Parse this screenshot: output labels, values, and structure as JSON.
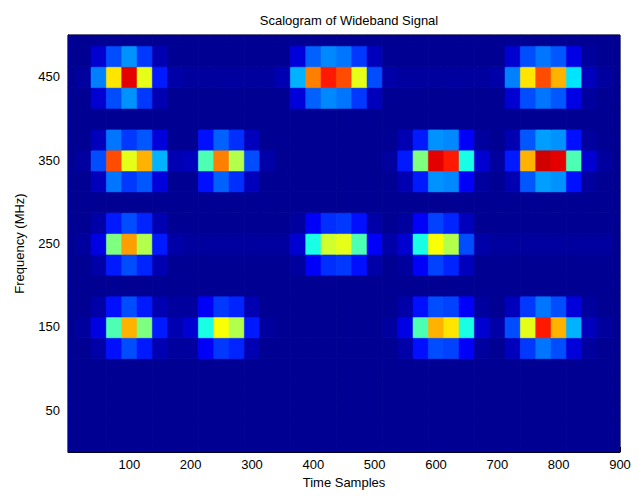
{
  "chart_data": {
    "type": "heatmap",
    "title": "Scalogram of Wideband Signal",
    "xlabel": "Time Samples",
    "ylabel": "Frequency (MHz)",
    "xlim": [
      0,
      900
    ],
    "ylim": [
      0,
      500
    ],
    "xticks": [
      100,
      200,
      300,
      400,
      500,
      600,
      700,
      800,
      900
    ],
    "yticks": [
      50,
      150,
      250,
      350,
      450
    ],
    "zlim": [
      0,
      1
    ],
    "grid": false,
    "x": [
      0,
      25,
      50,
      75,
      100,
      125,
      150,
      175,
      200,
      225,
      250,
      275,
      300,
      325,
      350,
      375,
      400,
      425,
      450,
      475,
      500,
      525,
      550,
      575,
      600,
      625,
      650,
      675,
      700,
      725,
      750,
      775,
      800,
      825,
      850,
      875,
      900
    ],
    "y": [
      0,
      25,
      50,
      75,
      100,
      125,
      150,
      175,
      200,
      225,
      250,
      275,
      300,
      325,
      350,
      375,
      400,
      425,
      450,
      475,
      500
    ],
    "values": [
      [
        0.02,
        0.02,
        0.02,
        0.02,
        0.02,
        0.02,
        0.02,
        0.02,
        0.02,
        0.02,
        0.02,
        0.02,
        0.02,
        0.02,
        0.02,
        0.02,
        0.02,
        0.02,
        0.02,
        0.02,
        0.02,
        0.02,
        0.02,
        0.02,
        0.02,
        0.02,
        0.02,
        0.02,
        0.02,
        0.02,
        0.02,
        0.02,
        0.02,
        0.02,
        0.02,
        0.02,
        0.02
      ],
      [
        0.02,
        0.02,
        0.02,
        0.02,
        0.02,
        0.02,
        0.02,
        0.02,
        0.02,
        0.02,
        0.02,
        0.02,
        0.02,
        0.02,
        0.02,
        0.02,
        0.02,
        0.02,
        0.02,
        0.02,
        0.02,
        0.02,
        0.02,
        0.02,
        0.02,
        0.02,
        0.02,
        0.02,
        0.02,
        0.02,
        0.02,
        0.02,
        0.02,
        0.02,
        0.02,
        0.02,
        0.02
      ],
      [
        0.02,
        0.02,
        0.02,
        0.02,
        0.02,
        0.02,
        0.02,
        0.02,
        0.02,
        0.02,
        0.02,
        0.02,
        0.02,
        0.02,
        0.02,
        0.02,
        0.02,
        0.02,
        0.02,
        0.02,
        0.02,
        0.02,
        0.02,
        0.02,
        0.02,
        0.02,
        0.02,
        0.02,
        0.02,
        0.02,
        0.02,
        0.02,
        0.02,
        0.02,
        0.02,
        0.02,
        0.02
      ],
      [
        0.02,
        0.02,
        0.02,
        0.02,
        0.02,
        0.02,
        0.02,
        0.02,
        0.02,
        0.02,
        0.02,
        0.02,
        0.02,
        0.02,
        0.02,
        0.02,
        0.02,
        0.02,
        0.02,
        0.02,
        0.02,
        0.02,
        0.02,
        0.02,
        0.02,
        0.02,
        0.02,
        0.02,
        0.02,
        0.02,
        0.02,
        0.02,
        0.02,
        0.02,
        0.02,
        0.02,
        0.02
      ],
      [
        0.02,
        0.02,
        0.02,
        0.02,
        0.02,
        0.02,
        0.02,
        0.02,
        0.02,
        0.02,
        0.02,
        0.02,
        0.02,
        0.02,
        0.02,
        0.02,
        0.02,
        0.02,
        0.02,
        0.02,
        0.02,
        0.02,
        0.02,
        0.02,
        0.02,
        0.02,
        0.02,
        0.02,
        0.02,
        0.02,
        0.02,
        0.02,
        0.02,
        0.02,
        0.02,
        0.02,
        0.02
      ],
      [
        0.02,
        0.02,
        0.04,
        0.14,
        0.2,
        0.15,
        0.05,
        0.03,
        0.03,
        0.12,
        0.18,
        0.16,
        0.05,
        0.02,
        0.02,
        0.02,
        0.02,
        0.02,
        0.02,
        0.02,
        0.02,
        0.02,
        0.04,
        0.14,
        0.2,
        0.19,
        0.12,
        0.03,
        0.02,
        0.06,
        0.18,
        0.24,
        0.2,
        0.09,
        0.03,
        0.02,
        0.02
      ],
      [
        0.02,
        0.03,
        0.1,
        0.45,
        0.7,
        0.5,
        0.15,
        0.05,
        0.08,
        0.4,
        0.62,
        0.55,
        0.15,
        0.03,
        0.02,
        0.02,
        0.02,
        0.02,
        0.02,
        0.02,
        0.02,
        0.03,
        0.1,
        0.45,
        0.7,
        0.65,
        0.4,
        0.08,
        0.04,
        0.2,
        0.6,
        0.85,
        0.7,
        0.3,
        0.06,
        0.03,
        0.02
      ],
      [
        0.02,
        0.02,
        0.04,
        0.14,
        0.2,
        0.15,
        0.05,
        0.03,
        0.03,
        0.12,
        0.18,
        0.16,
        0.05,
        0.02,
        0.02,
        0.02,
        0.02,
        0.02,
        0.02,
        0.02,
        0.02,
        0.02,
        0.04,
        0.14,
        0.2,
        0.19,
        0.12,
        0.03,
        0.02,
        0.06,
        0.18,
        0.24,
        0.2,
        0.09,
        0.03,
        0.02,
        0.02
      ],
      [
        0.02,
        0.02,
        0.02,
        0.02,
        0.02,
        0.02,
        0.02,
        0.02,
        0.02,
        0.02,
        0.02,
        0.02,
        0.02,
        0.02,
        0.02,
        0.02,
        0.02,
        0.02,
        0.02,
        0.02,
        0.02,
        0.02,
        0.02,
        0.02,
        0.02,
        0.02,
        0.02,
        0.02,
        0.02,
        0.02,
        0.02,
        0.02,
        0.02,
        0.02,
        0.02,
        0.02,
        0.02
      ],
      [
        0.02,
        0.02,
        0.04,
        0.15,
        0.2,
        0.16,
        0.05,
        0.02,
        0.02,
        0.02,
        0.02,
        0.02,
        0.02,
        0.02,
        0.02,
        0.03,
        0.12,
        0.17,
        0.18,
        0.14,
        0.04,
        0.02,
        0.03,
        0.12,
        0.19,
        0.16,
        0.06,
        0.02,
        0.02,
        0.02,
        0.02,
        0.02,
        0.02,
        0.02,
        0.02,
        0.02,
        0.02
      ],
      [
        0.02,
        0.03,
        0.1,
        0.5,
        0.72,
        0.55,
        0.15,
        0.04,
        0.03,
        0.03,
        0.03,
        0.03,
        0.03,
        0.03,
        0.03,
        0.08,
        0.4,
        0.58,
        0.6,
        0.45,
        0.12,
        0.04,
        0.08,
        0.4,
        0.62,
        0.55,
        0.2,
        0.04,
        0.03,
        0.03,
        0.03,
        0.03,
        0.03,
        0.03,
        0.03,
        0.03,
        0.02
      ],
      [
        0.02,
        0.02,
        0.04,
        0.15,
        0.2,
        0.16,
        0.05,
        0.02,
        0.02,
        0.02,
        0.02,
        0.02,
        0.02,
        0.02,
        0.02,
        0.03,
        0.12,
        0.17,
        0.18,
        0.14,
        0.04,
        0.02,
        0.03,
        0.12,
        0.19,
        0.16,
        0.06,
        0.02,
        0.02,
        0.02,
        0.02,
        0.02,
        0.02,
        0.02,
        0.02,
        0.02,
        0.02
      ],
      [
        0.02,
        0.02,
        0.02,
        0.02,
        0.02,
        0.02,
        0.02,
        0.02,
        0.02,
        0.02,
        0.02,
        0.02,
        0.02,
        0.02,
        0.02,
        0.02,
        0.02,
        0.02,
        0.02,
        0.02,
        0.02,
        0.02,
        0.02,
        0.02,
        0.02,
        0.02,
        0.02,
        0.02,
        0.02,
        0.02,
        0.02,
        0.02,
        0.02,
        0.02,
        0.02,
        0.02,
        0.02
      ],
      [
        0.02,
        0.02,
        0.06,
        0.24,
        0.18,
        0.21,
        0.09,
        0.02,
        0.02,
        0.14,
        0.22,
        0.17,
        0.06,
        0.02,
        0.02,
        0.02,
        0.02,
        0.02,
        0.02,
        0.02,
        0.02,
        0.02,
        0.05,
        0.15,
        0.27,
        0.26,
        0.12,
        0.03,
        0.02,
        0.05,
        0.21,
        0.28,
        0.27,
        0.14,
        0.03,
        0.02,
        0.02
      ],
      [
        0.02,
        0.03,
        0.2,
        0.8,
        0.6,
        0.7,
        0.3,
        0.05,
        0.06,
        0.45,
        0.75,
        0.55,
        0.2,
        0.04,
        0.02,
        0.02,
        0.02,
        0.02,
        0.02,
        0.02,
        0.02,
        0.03,
        0.15,
        0.5,
        0.9,
        0.85,
        0.4,
        0.08,
        0.03,
        0.15,
        0.7,
        0.92,
        0.9,
        0.45,
        0.08,
        0.03,
        0.02
      ],
      [
        0.02,
        0.02,
        0.06,
        0.24,
        0.18,
        0.21,
        0.09,
        0.02,
        0.02,
        0.14,
        0.22,
        0.17,
        0.06,
        0.02,
        0.02,
        0.02,
        0.02,
        0.02,
        0.02,
        0.02,
        0.02,
        0.02,
        0.05,
        0.15,
        0.27,
        0.26,
        0.12,
        0.03,
        0.02,
        0.05,
        0.21,
        0.28,
        0.27,
        0.14,
        0.03,
        0.02,
        0.02
      ],
      [
        0.02,
        0.02,
        0.02,
        0.02,
        0.02,
        0.02,
        0.02,
        0.02,
        0.02,
        0.02,
        0.02,
        0.02,
        0.02,
        0.02,
        0.02,
        0.02,
        0.02,
        0.02,
        0.02,
        0.02,
        0.02,
        0.02,
        0.02,
        0.02,
        0.02,
        0.02,
        0.02,
        0.02,
        0.02,
        0.02,
        0.02,
        0.02,
        0.02,
        0.02,
        0.02,
        0.02,
        0.02
      ],
      [
        0.02,
        0.02,
        0.08,
        0.2,
        0.27,
        0.18,
        0.05,
        0.02,
        0.02,
        0.02,
        0.02,
        0.02,
        0.02,
        0.02,
        0.02,
        0.09,
        0.22,
        0.26,
        0.24,
        0.18,
        0.06,
        0.02,
        0.02,
        0.02,
        0.02,
        0.02,
        0.02,
        0.02,
        0.02,
        0.08,
        0.2,
        0.24,
        0.21,
        0.1,
        0.03,
        0.02,
        0.02
      ],
      [
        0.02,
        0.03,
        0.25,
        0.65,
        0.9,
        0.6,
        0.15,
        0.04,
        0.03,
        0.03,
        0.03,
        0.03,
        0.03,
        0.03,
        0.05,
        0.3,
        0.75,
        0.85,
        0.8,
        0.6,
        0.2,
        0.04,
        0.03,
        0.03,
        0.03,
        0.03,
        0.03,
        0.03,
        0.04,
        0.25,
        0.65,
        0.8,
        0.7,
        0.35,
        0.06,
        0.03,
        0.02
      ],
      [
        0.02,
        0.02,
        0.08,
        0.2,
        0.27,
        0.18,
        0.05,
        0.02,
        0.02,
        0.02,
        0.02,
        0.02,
        0.02,
        0.02,
        0.02,
        0.09,
        0.22,
        0.26,
        0.24,
        0.18,
        0.06,
        0.02,
        0.02,
        0.02,
        0.02,
        0.02,
        0.02,
        0.02,
        0.02,
        0.08,
        0.2,
        0.24,
        0.21,
        0.1,
        0.03,
        0.02,
        0.02
      ],
      [
        0.02,
        0.02,
        0.02,
        0.02,
        0.02,
        0.02,
        0.02,
        0.02,
        0.02,
        0.02,
        0.02,
        0.02,
        0.02,
        0.02,
        0.02,
        0.02,
        0.02,
        0.02,
        0.02,
        0.02,
        0.02,
        0.02,
        0.02,
        0.02,
        0.02,
        0.02,
        0.02,
        0.02,
        0.02,
        0.02,
        0.02,
        0.02,
        0.02,
        0.02,
        0.02,
        0.02,
        0.02
      ]
    ]
  }
}
